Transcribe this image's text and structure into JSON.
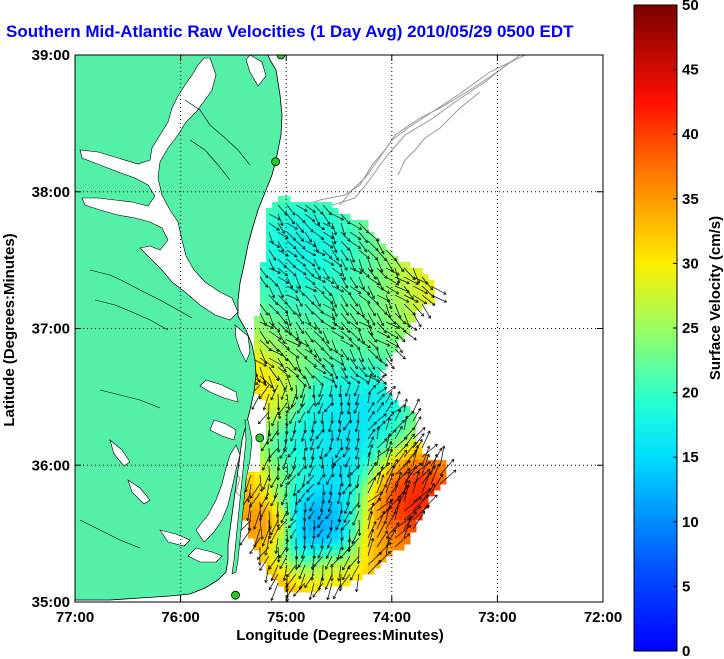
{
  "title": "Southern Mid-Atlantic Raw Velocities (1 Day Avg) 2010/05/29 0500 EDT",
  "map": {
    "xlabel": "Longitude (Degrees:Minutes)",
    "ylabel": "Latitude (Degrees:Minutes)",
    "lon_range": [
      -77,
      -72
    ],
    "lat_range": [
      35,
      39
    ],
    "x_ticks": [
      "77:00",
      "76:00",
      "75:00",
      "74:00",
      "73:00",
      "72:00"
    ],
    "y_ticks": [
      "39:00",
      "38:00",
      "37:00",
      "36:00",
      "35:00"
    ],
    "grid": "dotted",
    "land_color": "#55f0a8",
    "water_color": "#ffffff",
    "bathymetry_color": "#999999"
  },
  "colorbar": {
    "label": "Surface Velocity (cm/s)",
    "min": 0,
    "max": 50,
    "ticks": [
      "0",
      "5",
      "10",
      "15",
      "20",
      "25",
      "30",
      "35",
      "40",
      "45",
      "50"
    ],
    "colormap": "jet"
  },
  "stations": [
    {
      "lon": -75.05,
      "lat": 39.0
    },
    {
      "lon": -75.1,
      "lat": 38.22
    },
    {
      "lon": -75.25,
      "lat": 36.2
    },
    {
      "lon": -75.48,
      "lat": 35.05
    }
  ]
}
